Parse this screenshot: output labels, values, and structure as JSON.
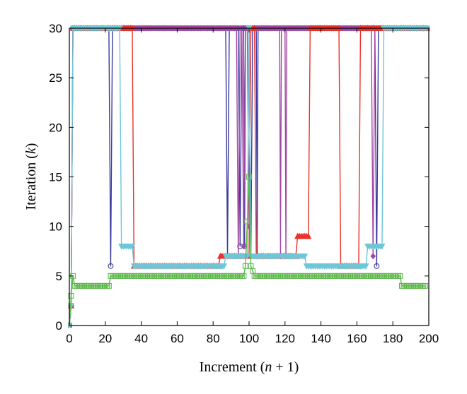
{
  "chart_data": {
    "type": "line",
    "xlabel": "Increment (n + 1)",
    "xlabel_parts": [
      "Increment (",
      "n",
      " + 1)"
    ],
    "ylabel": "Iteration (k)",
    "ylabel_parts": [
      "Iteration (",
      "k",
      ")"
    ],
    "xlim": [
      0,
      200
    ],
    "ylim": [
      0,
      30
    ],
    "xticks": [
      0,
      20,
      40,
      60,
      80,
      100,
      120,
      140,
      160,
      180,
      200
    ],
    "yticks": [
      0,
      5,
      10,
      15,
      20,
      25,
      30
    ],
    "grid": false,
    "legend": "none",
    "series": [
      {
        "color": "#3b3b9e",
        "marker": "circle",
        "points": [
          [
            0,
            0
          ],
          [
            1,
            2
          ],
          [
            2,
            30
          ],
          [
            22,
            30
          ],
          [
            23,
            6
          ],
          [
            24,
            30
          ],
          [
            87,
            30
          ],
          [
            88,
            7
          ],
          [
            89,
            30
          ],
          [
            94,
            30
          ],
          [
            95,
            8
          ],
          [
            96,
            30
          ],
          [
            97,
            30
          ],
          [
            97.5,
            8
          ],
          [
            98,
            30
          ],
          [
            100,
            30
          ],
          [
            101,
            7
          ],
          [
            102,
            30
          ],
          [
            104,
            30
          ],
          [
            104.5,
            7
          ],
          [
            105,
            30
          ],
          [
            170,
            30
          ],
          [
            171,
            6
          ],
          [
            172,
            30
          ],
          [
            199,
            30
          ]
        ]
      },
      {
        "color": "#a347a3",
        "marker": "diamond",
        "points": [
          [
            0,
            0
          ],
          [
            1,
            2
          ],
          [
            2,
            30
          ],
          [
            93,
            30
          ],
          [
            94,
            7
          ],
          [
            95,
            30
          ],
          [
            96,
            30
          ],
          [
            97,
            8
          ],
          [
            98,
            30
          ],
          [
            99,
            30
          ],
          [
            100,
            10
          ],
          [
            101,
            30
          ],
          [
            117,
            30
          ],
          [
            117.5,
            7
          ],
          [
            118,
            30
          ],
          [
            120,
            30
          ],
          [
            120.5,
            7
          ],
          [
            121,
            30
          ],
          [
            168,
            30
          ],
          [
            169,
            7
          ],
          [
            170,
            30
          ],
          [
            199,
            30
          ]
        ]
      },
      {
        "color": "#e8322a",
        "marker": "triangle-up",
        "points": [
          [
            0,
            0
          ],
          [
            1,
            2
          ],
          [
            2,
            30
          ],
          [
            35,
            30
          ],
          [
            36,
            6
          ],
          [
            37,
            6
          ],
          [
            83,
            6
          ],
          [
            84,
            7
          ],
          [
            90,
            7
          ],
          [
            91,
            7
          ],
          [
            100,
            7
          ],
          [
            101,
            30
          ],
          [
            103,
            30
          ],
          [
            104,
            7
          ],
          [
            126,
            7
          ],
          [
            127,
            9
          ],
          [
            133,
            9
          ],
          [
            134,
            30
          ],
          [
            150,
            30
          ],
          [
            151,
            6
          ],
          [
            161,
            6
          ],
          [
            162,
            30
          ],
          [
            199,
            30
          ]
        ]
      },
      {
        "color": "#6ec6d6",
        "marker": "triangle-down",
        "points": [
          [
            0,
            0
          ],
          [
            1,
            2
          ],
          [
            2,
            30
          ],
          [
            28,
            30
          ],
          [
            29,
            8
          ],
          [
            35,
            8
          ],
          [
            36,
            6
          ],
          [
            86,
            6
          ],
          [
            87,
            7
          ],
          [
            96,
            7
          ],
          [
            97,
            7
          ],
          [
            99,
            7
          ],
          [
            100,
            30
          ],
          [
            101,
            7
          ],
          [
            131,
            7
          ],
          [
            132,
            6
          ],
          [
            165,
            6
          ],
          [
            166,
            8
          ],
          [
            174,
            8
          ],
          [
            175,
            30
          ],
          [
            199,
            30
          ]
        ]
      },
      {
        "color": "#5cb84a",
        "marker": "square",
        "points": [
          [
            0,
            0
          ],
          [
            1,
            3
          ],
          [
            2,
            5
          ],
          [
            3,
            4
          ],
          [
            22,
            4
          ],
          [
            23,
            5
          ],
          [
            97,
            5
          ],
          [
            98,
            6
          ],
          [
            100,
            15
          ],
          [
            101,
            6
          ],
          [
            103,
            5
          ],
          [
            184,
            5
          ],
          [
            185,
            4
          ],
          [
            198,
            4
          ]
        ]
      }
    ]
  }
}
